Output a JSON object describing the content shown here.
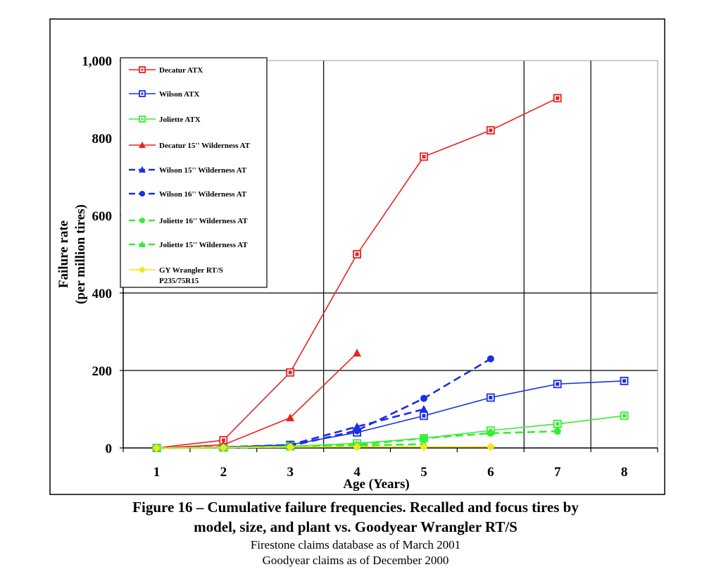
{
  "figure": {
    "title_line1": "Figure 16 – Cumulative failure frequencies. Recalled and focus tires by",
    "title_line2": "model, size, and plant vs. Goodyear Wrangler RT/S",
    "note1": "Firestone claims database as of March 2001",
    "note2": "Goodyear claims as of December 2000"
  },
  "chart_data": {
    "type": "line",
    "title": "",
    "xlabel": "Age (Years)",
    "ylabel": [
      "Failure rate",
      "(per million tires)"
    ],
    "xlim": [
      0.5,
      8.5
    ],
    "ylim": [
      0,
      1000
    ],
    "x_ticks": [
      1,
      2,
      3,
      4,
      5,
      6,
      7,
      8
    ],
    "y_ticks": [
      0,
      200,
      400,
      600,
      800,
      1000
    ],
    "y_tick_labels": [
      "0",
      "200",
      "400",
      "600",
      "800",
      "1,000"
    ],
    "vertical_gridlines_at": [
      3.5,
      6.5,
      7.5
    ],
    "horizontal_gridlines_at": [
      200,
      400
    ],
    "grid": true,
    "legend_position": "top-left",
    "series": [
      {
        "name": "Decatur ATX",
        "color": "#ee2020",
        "marker": "square",
        "dash": false,
        "points": [
          [
            1,
            0
          ],
          [
            2,
            20
          ],
          [
            3,
            195
          ],
          [
            4,
            500
          ],
          [
            5,
            752
          ],
          [
            6,
            820
          ],
          [
            7,
            903
          ]
        ]
      },
      {
        "name": "Wilson ATX",
        "color": "#1a2ee6",
        "marker": "square",
        "dash": false,
        "points": [
          [
            1,
            0
          ],
          [
            2,
            2
          ],
          [
            3,
            8
          ],
          [
            4,
            40
          ],
          [
            5,
            83
          ],
          [
            6,
            130
          ],
          [
            7,
            165
          ],
          [
            8,
            173
          ]
        ]
      },
      {
        "name": "Joliette ATX",
        "color": "#33ee33",
        "marker": "square",
        "dash": false,
        "points": [
          [
            1,
            0
          ],
          [
            2,
            1
          ],
          [
            3,
            4
          ],
          [
            4,
            12
          ],
          [
            5,
            25
          ],
          [
            6,
            45
          ],
          [
            7,
            62
          ],
          [
            8,
            83
          ]
        ]
      },
      {
        "name": "Decatur 15'' Wilderness AT",
        "color": "#ee2020",
        "marker": "triangle",
        "dash": false,
        "points": [
          [
            1,
            0
          ],
          [
            2,
            8
          ],
          [
            3,
            78
          ],
          [
            4,
            245
          ]
        ]
      },
      {
        "name": "Wilson 15'' Wilderness AT",
        "color": "#1a2ee6",
        "marker": "triangle",
        "dash": true,
        "points": [
          [
            1,
            0
          ],
          [
            2,
            2
          ],
          [
            3,
            8
          ],
          [
            4,
            55
          ],
          [
            5,
            100
          ]
        ]
      },
      {
        "name": "Wilson 16'' Wilderness AT",
        "color": "#1a2ee6",
        "marker": "circle",
        "dash": true,
        "points": [
          [
            1,
            0
          ],
          [
            2,
            2
          ],
          [
            3,
            5
          ],
          [
            4,
            45
          ],
          [
            5,
            128
          ],
          [
            6,
            230
          ]
        ]
      },
      {
        "name": "Joliette 16'' Wilderness AT",
        "color": "#33ee33",
        "marker": "circle",
        "dash": true,
        "points": [
          [
            1,
            0
          ],
          [
            2,
            1
          ],
          [
            3,
            4
          ],
          [
            4,
            8
          ],
          [
            5,
            25
          ],
          [
            6,
            38
          ],
          [
            7,
            43
          ]
        ]
      },
      {
        "name": "Joliette 15'' Wilderness AT",
        "color": "#33ee33",
        "marker": "triangle",
        "dash": true,
        "points": [
          [
            1,
            0
          ],
          [
            2,
            1
          ],
          [
            3,
            3
          ],
          [
            4,
            6
          ],
          [
            5,
            10
          ]
        ]
      },
      {
        "name": "GY Wrangler RT/S\nP235/75R15",
        "color": "#f2e61a",
        "marker": "diamond",
        "dash": false,
        "points": [
          [
            1,
            0
          ],
          [
            2,
            1
          ],
          [
            3,
            2
          ],
          [
            4,
            3
          ],
          [
            5,
            3
          ],
          [
            6,
            3
          ]
        ]
      }
    ]
  }
}
